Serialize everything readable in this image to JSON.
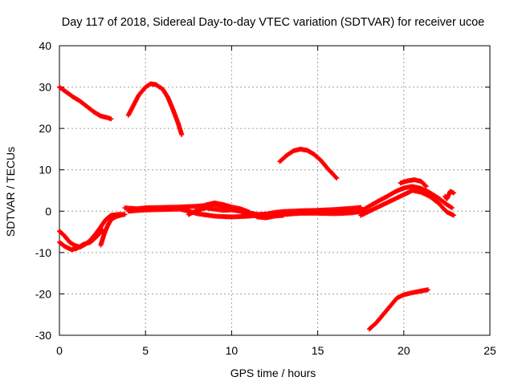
{
  "chart_data": {
    "type": "scatter",
    "title": "Day 117 of 2018, Sidereal Day-to-day VTEC variation (SDTVAR) for receiver ucoe",
    "xlabel": "GPS time / hours",
    "ylabel": "SDTVAR / TECUs",
    "xlim": [
      0,
      25
    ],
    "ylim": [
      -30,
      40
    ],
    "xticks": [
      0,
      5,
      10,
      15,
      20,
      25
    ],
    "yticks": [
      -30,
      -20,
      -10,
      0,
      10,
      20,
      30,
      40
    ],
    "grid": true,
    "point_color": "#ff0000",
    "series": [
      {
        "name": "arc-1",
        "points": [
          [
            0.0,
            30.0
          ],
          [
            0.4,
            28.8
          ],
          [
            0.8,
            27.6
          ],
          [
            1.2,
            26.6
          ],
          [
            1.6,
            25.3
          ],
          [
            2.0,
            24.0
          ],
          [
            2.4,
            23.0
          ],
          [
            2.8,
            22.6
          ],
          [
            3.0,
            22.3
          ]
        ]
      },
      {
        "name": "arc-2",
        "points": [
          [
            4.0,
            23.2
          ],
          [
            4.3,
            25.6
          ],
          [
            4.6,
            28.0
          ],
          [
            5.0,
            30.0
          ],
          [
            5.3,
            30.8
          ],
          [
            5.6,
            30.6
          ],
          [
            6.0,
            29.5
          ],
          [
            6.3,
            27.5
          ],
          [
            6.6,
            24.5
          ],
          [
            6.9,
            21.2
          ],
          [
            7.1,
            18.5
          ]
        ]
      },
      {
        "name": "arc-3",
        "points": [
          [
            12.8,
            12.0
          ],
          [
            13.2,
            13.5
          ],
          [
            13.6,
            14.6
          ],
          [
            14.0,
            15.0
          ],
          [
            14.4,
            14.7
          ],
          [
            14.8,
            13.7
          ],
          [
            15.2,
            12.2
          ],
          [
            15.6,
            10.2
          ],
          [
            16.1,
            8.0
          ]
        ]
      },
      {
        "name": "arc-4",
        "points": [
          [
            18.0,
            -28.5
          ],
          [
            18.4,
            -27.0
          ],
          [
            18.8,
            -25.0
          ],
          [
            19.2,
            -23.0
          ],
          [
            19.6,
            -21.0
          ],
          [
            20.0,
            -20.2
          ],
          [
            20.5,
            -19.7
          ],
          [
            21.0,
            -19.3
          ],
          [
            21.4,
            -19.0
          ]
        ]
      },
      {
        "name": "arc-5",
        "points": [
          [
            0.0,
            -4.8
          ],
          [
            0.3,
            -6.0
          ],
          [
            0.6,
            -7.5
          ],
          [
            0.9,
            -8.3
          ],
          [
            1.2,
            -8.7
          ],
          [
            1.5,
            -8.0
          ],
          [
            1.8,
            -7.0
          ],
          [
            2.1,
            -5.5
          ],
          [
            2.4,
            -3.8
          ],
          [
            2.7,
            -2.0
          ],
          [
            3.0,
            -1.0
          ],
          [
            3.4,
            -0.8
          ],
          [
            3.8,
            -0.8
          ]
        ]
      },
      {
        "name": "arc-6",
        "points": [
          [
            0.0,
            -7.5
          ],
          [
            0.3,
            -8.5
          ],
          [
            0.7,
            -9.3
          ],
          [
            1.0,
            -9.0
          ],
          [
            1.4,
            -8.0
          ],
          [
            1.8,
            -7.5
          ],
          [
            2.2,
            -6.0
          ],
          [
            2.5,
            -4.5
          ]
        ]
      },
      {
        "name": "arc-7",
        "points": [
          [
            2.4,
            -8.2
          ],
          [
            2.6,
            -5.5
          ],
          [
            2.8,
            -3.5
          ],
          [
            3.0,
            -2.0
          ],
          [
            3.3,
            -1.3
          ],
          [
            3.7,
            -0.8
          ]
        ]
      },
      {
        "name": "arc-8",
        "points": [
          [
            3.8,
            0.8
          ],
          [
            4.5,
            0.6
          ],
          [
            5.0,
            0.8
          ],
          [
            6.0,
            0.9
          ],
          [
            7.0,
            1.0
          ],
          [
            8.0,
            1.2
          ],
          [
            9.0,
            1.6
          ],
          [
            10.0,
            0.6
          ],
          [
            11.0,
            -0.6
          ],
          [
            12.0,
            -1.0
          ],
          [
            13.0,
            -0.8
          ],
          [
            14.0,
            -0.5
          ],
          [
            15.0,
            -0.5
          ],
          [
            16.0,
            -0.6
          ],
          [
            17.0,
            -0.4
          ],
          [
            17.5,
            -0.1
          ]
        ]
      },
      {
        "name": "arc-9",
        "points": [
          [
            4.0,
            0.0
          ],
          [
            5.0,
            0.3
          ],
          [
            6.0,
            0.4
          ],
          [
            7.0,
            0.5
          ],
          [
            7.5,
            0.0
          ],
          [
            8.0,
            -0.6
          ],
          [
            9.0,
            -1.2
          ],
          [
            10.0,
            -1.4
          ],
          [
            11.0,
            -1.2
          ],
          [
            12.0,
            -0.9
          ],
          [
            13.0,
            -0.6
          ],
          [
            14.0,
            -0.4
          ],
          [
            15.0,
            -0.2
          ],
          [
            16.0,
            0.0
          ],
          [
            17.0,
            0.2
          ]
        ]
      },
      {
        "name": "arc-10",
        "points": [
          [
            7.5,
            -0.8
          ],
          [
            8.0,
            0.2
          ],
          [
            8.5,
            0.8
          ],
          [
            9.0,
            0.5
          ],
          [
            9.5,
            0.2
          ],
          [
            10.0,
            0.3
          ],
          [
            10.5,
            0.0
          ],
          [
            11.0,
            -0.4
          ],
          [
            11.5,
            -0.8
          ],
          [
            12.0,
            -0.7
          ],
          [
            12.5,
            -0.3
          ],
          [
            13.0,
            -0.1
          ],
          [
            14.0,
            0.1
          ],
          [
            15.0,
            0.2
          ],
          [
            16.0,
            0.4
          ],
          [
            17.0,
            0.7
          ],
          [
            17.5,
            0.9
          ]
        ]
      },
      {
        "name": "arc-11",
        "points": [
          [
            8.5,
            1.5
          ],
          [
            9.0,
            2.0
          ],
          [
            9.5,
            1.6
          ],
          [
            10.0,
            1.0
          ],
          [
            10.5,
            0.6
          ],
          [
            11.0,
            -0.2
          ],
          [
            11.5,
            -1.4
          ],
          [
            12.0,
            -1.6
          ],
          [
            12.5,
            -1.2
          ],
          [
            13.0,
            -1.0
          ]
        ]
      },
      {
        "name": "arc-12",
        "points": [
          [
            17.5,
            0.0
          ],
          [
            18.0,
            1.2
          ],
          [
            18.5,
            2.4
          ],
          [
            19.0,
            3.5
          ],
          [
            19.5,
            4.7
          ],
          [
            20.0,
            5.6
          ],
          [
            20.5,
            6.0
          ],
          [
            21.0,
            5.5
          ],
          [
            21.5,
            4.5
          ],
          [
            22.0,
            3.2
          ],
          [
            22.5,
            1.6
          ],
          [
            22.8,
            0.8
          ]
        ]
      },
      {
        "name": "arc-13",
        "points": [
          [
            17.5,
            -1.0
          ],
          [
            18.0,
            0.0
          ],
          [
            18.5,
            1.0
          ],
          [
            19.0,
            2.0
          ],
          [
            19.5,
            3.0
          ],
          [
            20.0,
            4.0
          ],
          [
            20.5,
            5.0
          ],
          [
            21.0,
            4.6
          ],
          [
            21.5,
            3.6
          ],
          [
            22.0,
            2.0
          ],
          [
            22.5,
            -0.2
          ],
          [
            22.9,
            -1.0
          ]
        ]
      },
      {
        "name": "arc-14",
        "points": [
          [
            19.8,
            6.8
          ],
          [
            20.2,
            7.3
          ],
          [
            20.6,
            7.6
          ],
          [
            21.0,
            7.2
          ],
          [
            21.3,
            6.0
          ]
        ]
      },
      {
        "name": "arc-15",
        "points": [
          [
            22.4,
            3.6
          ],
          [
            22.5,
            3.0
          ],
          [
            22.7,
            4.8
          ],
          [
            22.9,
            4.4
          ]
        ]
      }
    ]
  }
}
